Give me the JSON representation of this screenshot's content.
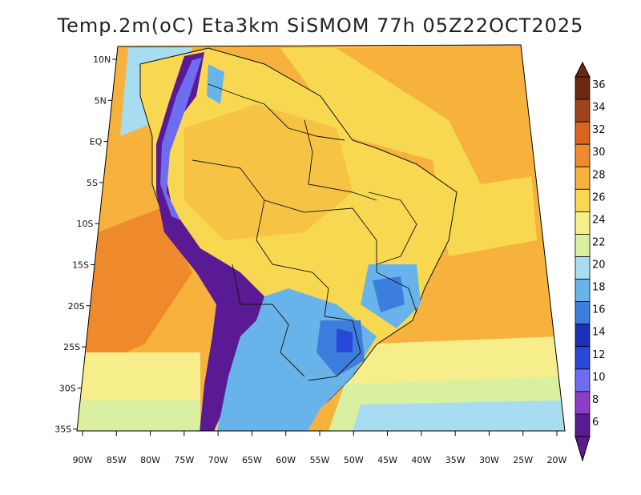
{
  "title": "Temp.2m(oC) Eta3km SiSMOM 77h 05Z22OCT2025",
  "lat_labels": [
    "10N",
    "5N",
    "EQ",
    "5S",
    "10S",
    "15S",
    "20S",
    "25S",
    "30S",
    "35S"
  ],
  "lon_labels": [
    "90W",
    "85W",
    "80W",
    "75W",
    "70W",
    "65W",
    "60W",
    "55W",
    "50W",
    "45W",
    "40W",
    "35W",
    "30W",
    "25W",
    "20W"
  ],
  "colorbar": {
    "labels": [
      "36",
      "34",
      "32",
      "30",
      "28",
      "26",
      "24",
      "22",
      "20",
      "18",
      "16",
      "14",
      "12",
      "10",
      "8",
      "6"
    ],
    "colors": [
      "#6b2a10",
      "#a0421a",
      "#d86420",
      "#ef8a2c",
      "#f6b23c",
      "#f8d850",
      "#f6ee8a",
      "#d8f0a0",
      "#a8dcf0",
      "#68b4ea",
      "#3c7ede",
      "#1a30b8",
      "#2a48d8",
      "#6e6cf0",
      "#8a3ec8",
      "#5a1a94"
    ]
  },
  "fill_colors": {
    "ocean_warm": "#f6b23c",
    "ocean_mid": "#f8d850",
    "ocean_cool": "#f6ee8a",
    "ocean_cold": "#a8dcf0",
    "land_warm": "#f8d850",
    "andes": "#5a1a94",
    "andes_edge": "#6e6cf0",
    "south_cool": "#68b4ea",
    "south_cold": "#3c7ede"
  }
}
